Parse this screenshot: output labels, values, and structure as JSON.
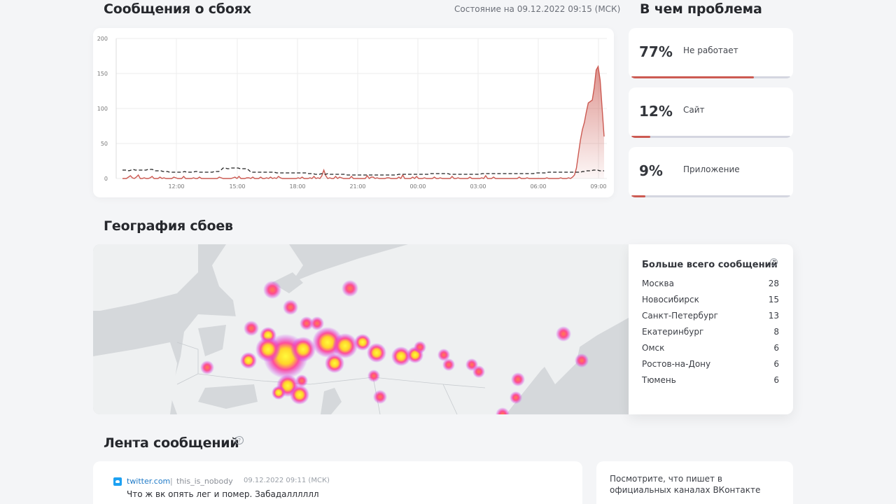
{
  "outages": {
    "title": "Сообщения о сбоях",
    "status": "Состояние на 09.12.2022 09:15 (МСК)"
  },
  "problems": {
    "title": "В чем проблема",
    "items": [
      {
        "percent": "77%",
        "label": "Не работает",
        "fraction": 0.77
      },
      {
        "percent": "12%",
        "label": "Сайт",
        "fraction": 0.12
      },
      {
        "percent": "9%",
        "label": "Приложение",
        "fraction": 0.09
      }
    ]
  },
  "geo": {
    "title": "География сбоев",
    "top_title": "Больше всего сообщений",
    "help": "?",
    "cities": [
      {
        "name": "Москва",
        "count": "28"
      },
      {
        "name": "Новосибирск",
        "count": "15"
      },
      {
        "name": "Санкт-Петербург",
        "count": "13"
      },
      {
        "name": "Екатеринбург",
        "count": "8"
      },
      {
        "name": "Омск",
        "count": "6"
      },
      {
        "name": "Ростов-на-Дону",
        "count": "6"
      },
      {
        "name": "Тюмень",
        "count": "6"
      }
    ]
  },
  "feed": {
    "title": "Лента сообщений",
    "help": "?",
    "post": {
      "source": "twitter.com",
      "separator": "|",
      "user": "this_is_nobody",
      "time": "09.12.2022 09:11 (МСК)",
      "text": "Что ж вк опять лег и помер. Забадалллллл",
      "icon": "twitter-icon"
    },
    "official": "Посмотрите, что пишет в официальных каналах ВКонтакте"
  },
  "chart_data": {
    "type": "area",
    "yticks": [
      "200",
      "150",
      "100",
      "50",
      "0"
    ],
    "ylim": [
      0,
      200
    ],
    "xticks": [
      "12:00",
      "15:00",
      "18:00",
      "21:00",
      "00:00",
      "03:00",
      "06:00",
      "09:00"
    ],
    "series": [
      {
        "style": "solid-area",
        "color": "#cc5a52",
        "values": [
          0,
          0,
          0,
          2,
          4,
          1,
          0,
          2,
          5,
          0,
          0,
          1,
          0,
          0,
          1,
          3,
          0,
          0,
          0,
          2,
          0,
          1,
          0,
          0,
          0,
          0,
          2,
          1,
          0,
          0,
          0,
          3,
          0,
          0,
          0,
          0,
          1,
          0,
          0,
          2,
          0,
          0,
          0,
          0,
          0,
          0,
          0,
          0,
          0,
          2,
          1,
          0,
          0,
          0,
          0,
          0,
          1,
          2,
          0,
          3,
          0,
          0,
          0,
          1,
          1,
          0,
          2,
          0,
          0,
          0,
          2,
          0,
          0,
          1,
          0,
          2,
          0,
          1,
          0,
          3,
          1,
          0,
          0,
          0,
          0,
          0,
          0,
          0,
          0,
          1,
          0,
          2,
          0,
          0,
          0,
          1,
          0,
          3,
          0,
          1,
          0,
          4,
          12,
          4,
          0,
          1,
          0,
          0,
          3,
          0,
          2,
          1,
          0,
          0,
          0,
          0,
          3,
          0,
          0,
          0,
          0,
          0,
          0,
          0,
          4,
          0,
          2,
          2,
          0,
          1,
          0,
          0,
          0,
          0,
          1,
          1,
          0,
          0,
          0,
          0,
          2,
          0,
          5,
          0,
          0,
          0,
          0,
          2,
          0,
          3,
          0,
          0,
          0,
          1,
          0,
          0,
          0,
          0,
          2,
          0,
          0,
          1,
          0,
          0,
          0,
          0,
          0,
          3,
          0,
          0,
          1,
          0,
          0,
          0,
          0,
          0,
          2,
          0,
          0,
          0,
          0,
          0,
          1,
          0,
          4,
          0,
          0,
          0,
          2,
          0,
          0,
          0,
          0,
          0,
          0,
          0,
          0,
          0,
          0,
          0,
          0,
          2,
          0,
          0,
          0,
          1,
          0,
          0,
          0,
          0,
          0,
          0,
          0,
          0,
          0,
          1,
          0,
          0,
          0,
          0,
          0,
          0,
          1,
          0,
          0,
          0,
          1,
          0,
          2,
          5,
          15,
          35,
          55,
          70,
          80,
          95,
          108,
          110,
          112,
          130,
          155,
          160,
          140,
          100,
          60
        ]
      },
      {
        "style": "dashed",
        "color": "#222222",
        "values": [
          12,
          12,
          12,
          11,
          12,
          13,
          12,
          12,
          12,
          12,
          12,
          12,
          13,
          13,
          13,
          11,
          11,
          11,
          11,
          10,
          10,
          10,
          9,
          9,
          9,
          9,
          9,
          9,
          9,
          10,
          9,
          9,
          9,
          9,
          10,
          10,
          9,
          9,
          9,
          9,
          9,
          9,
          9,
          10,
          10,
          10,
          12,
          15,
          15,
          14,
          14,
          15,
          15,
          15,
          15,
          14,
          14,
          14,
          14,
          12,
          9,
          9,
          9,
          9,
          9,
          9,
          9,
          9,
          9,
          9,
          9,
          9,
          8,
          8,
          8,
          8,
          8,
          8,
          8,
          8,
          8,
          8,
          8,
          8,
          8,
          8,
          8,
          7,
          7,
          7,
          6,
          6,
          6,
          7,
          6,
          6,
          7,
          6,
          6,
          6,
          6,
          6,
          6,
          6,
          6,
          5,
          5,
          5,
          5,
          5,
          5,
          5,
          5,
          5,
          5,
          5,
          5,
          5,
          5,
          5,
          5,
          5,
          5,
          5,
          5,
          5,
          5,
          5,
          5,
          6,
          6,
          6,
          6,
          6,
          6,
          6,
          6,
          6,
          6,
          6,
          6,
          6,
          6,
          6,
          7,
          7,
          7,
          7,
          7,
          7,
          7,
          7,
          7,
          6,
          6,
          6,
          6,
          6,
          6,
          6,
          6,
          6,
          6,
          6,
          6,
          6,
          6,
          6,
          7,
          7,
          7,
          7,
          7,
          7,
          7,
          7,
          7,
          7,
          7,
          7,
          7,
          7,
          7,
          7,
          7,
          7,
          7,
          7,
          7,
          7,
          7,
          7,
          7,
          8,
          8,
          8,
          8,
          8,
          8,
          9,
          9,
          9,
          9,
          9,
          9,
          9,
          9,
          9,
          9,
          9,
          9,
          9,
          9,
          9,
          9,
          10,
          10,
          11,
          11,
          11,
          12,
          12,
          12,
          11,
          11,
          11
        ]
      }
    ]
  },
  "colors": {
    "accent": "#cc5a52",
    "bar_track": "#d4d6e0",
    "map_land": "#eef0f1",
    "map_water": "#d5d8db",
    "link": "#1f7ac7"
  }
}
